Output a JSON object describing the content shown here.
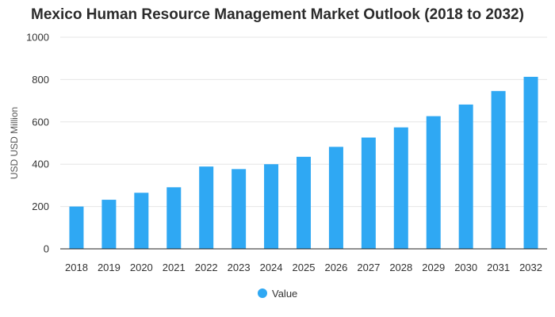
{
  "chart_data": {
    "type": "bar",
    "title": "Mexico Human Resource Management Market Outlook (2018 to 2032)",
    "xlabel": "",
    "ylabel": "USD USD Million",
    "categories": [
      "2018",
      "2019",
      "2020",
      "2021",
      "2022",
      "2023",
      "2024",
      "2025",
      "2026",
      "2027",
      "2028",
      "2029",
      "2030",
      "2031",
      "2032"
    ],
    "series": [
      {
        "name": "Value",
        "values": [
          200,
          232,
          265,
          291,
          389,
          377,
          400,
          435,
          482,
          526,
          574,
          627,
          682,
          746,
          813
        ]
      }
    ],
    "ylim": [
      0,
      1000
    ],
    "yticks": [
      0,
      200,
      400,
      600,
      800,
      1000
    ],
    "grid": true,
    "legend": "bottom-center",
    "colors": {
      "bar": "#2fa8f3",
      "grid": "#e6e6e6",
      "axis": "#222222"
    }
  }
}
